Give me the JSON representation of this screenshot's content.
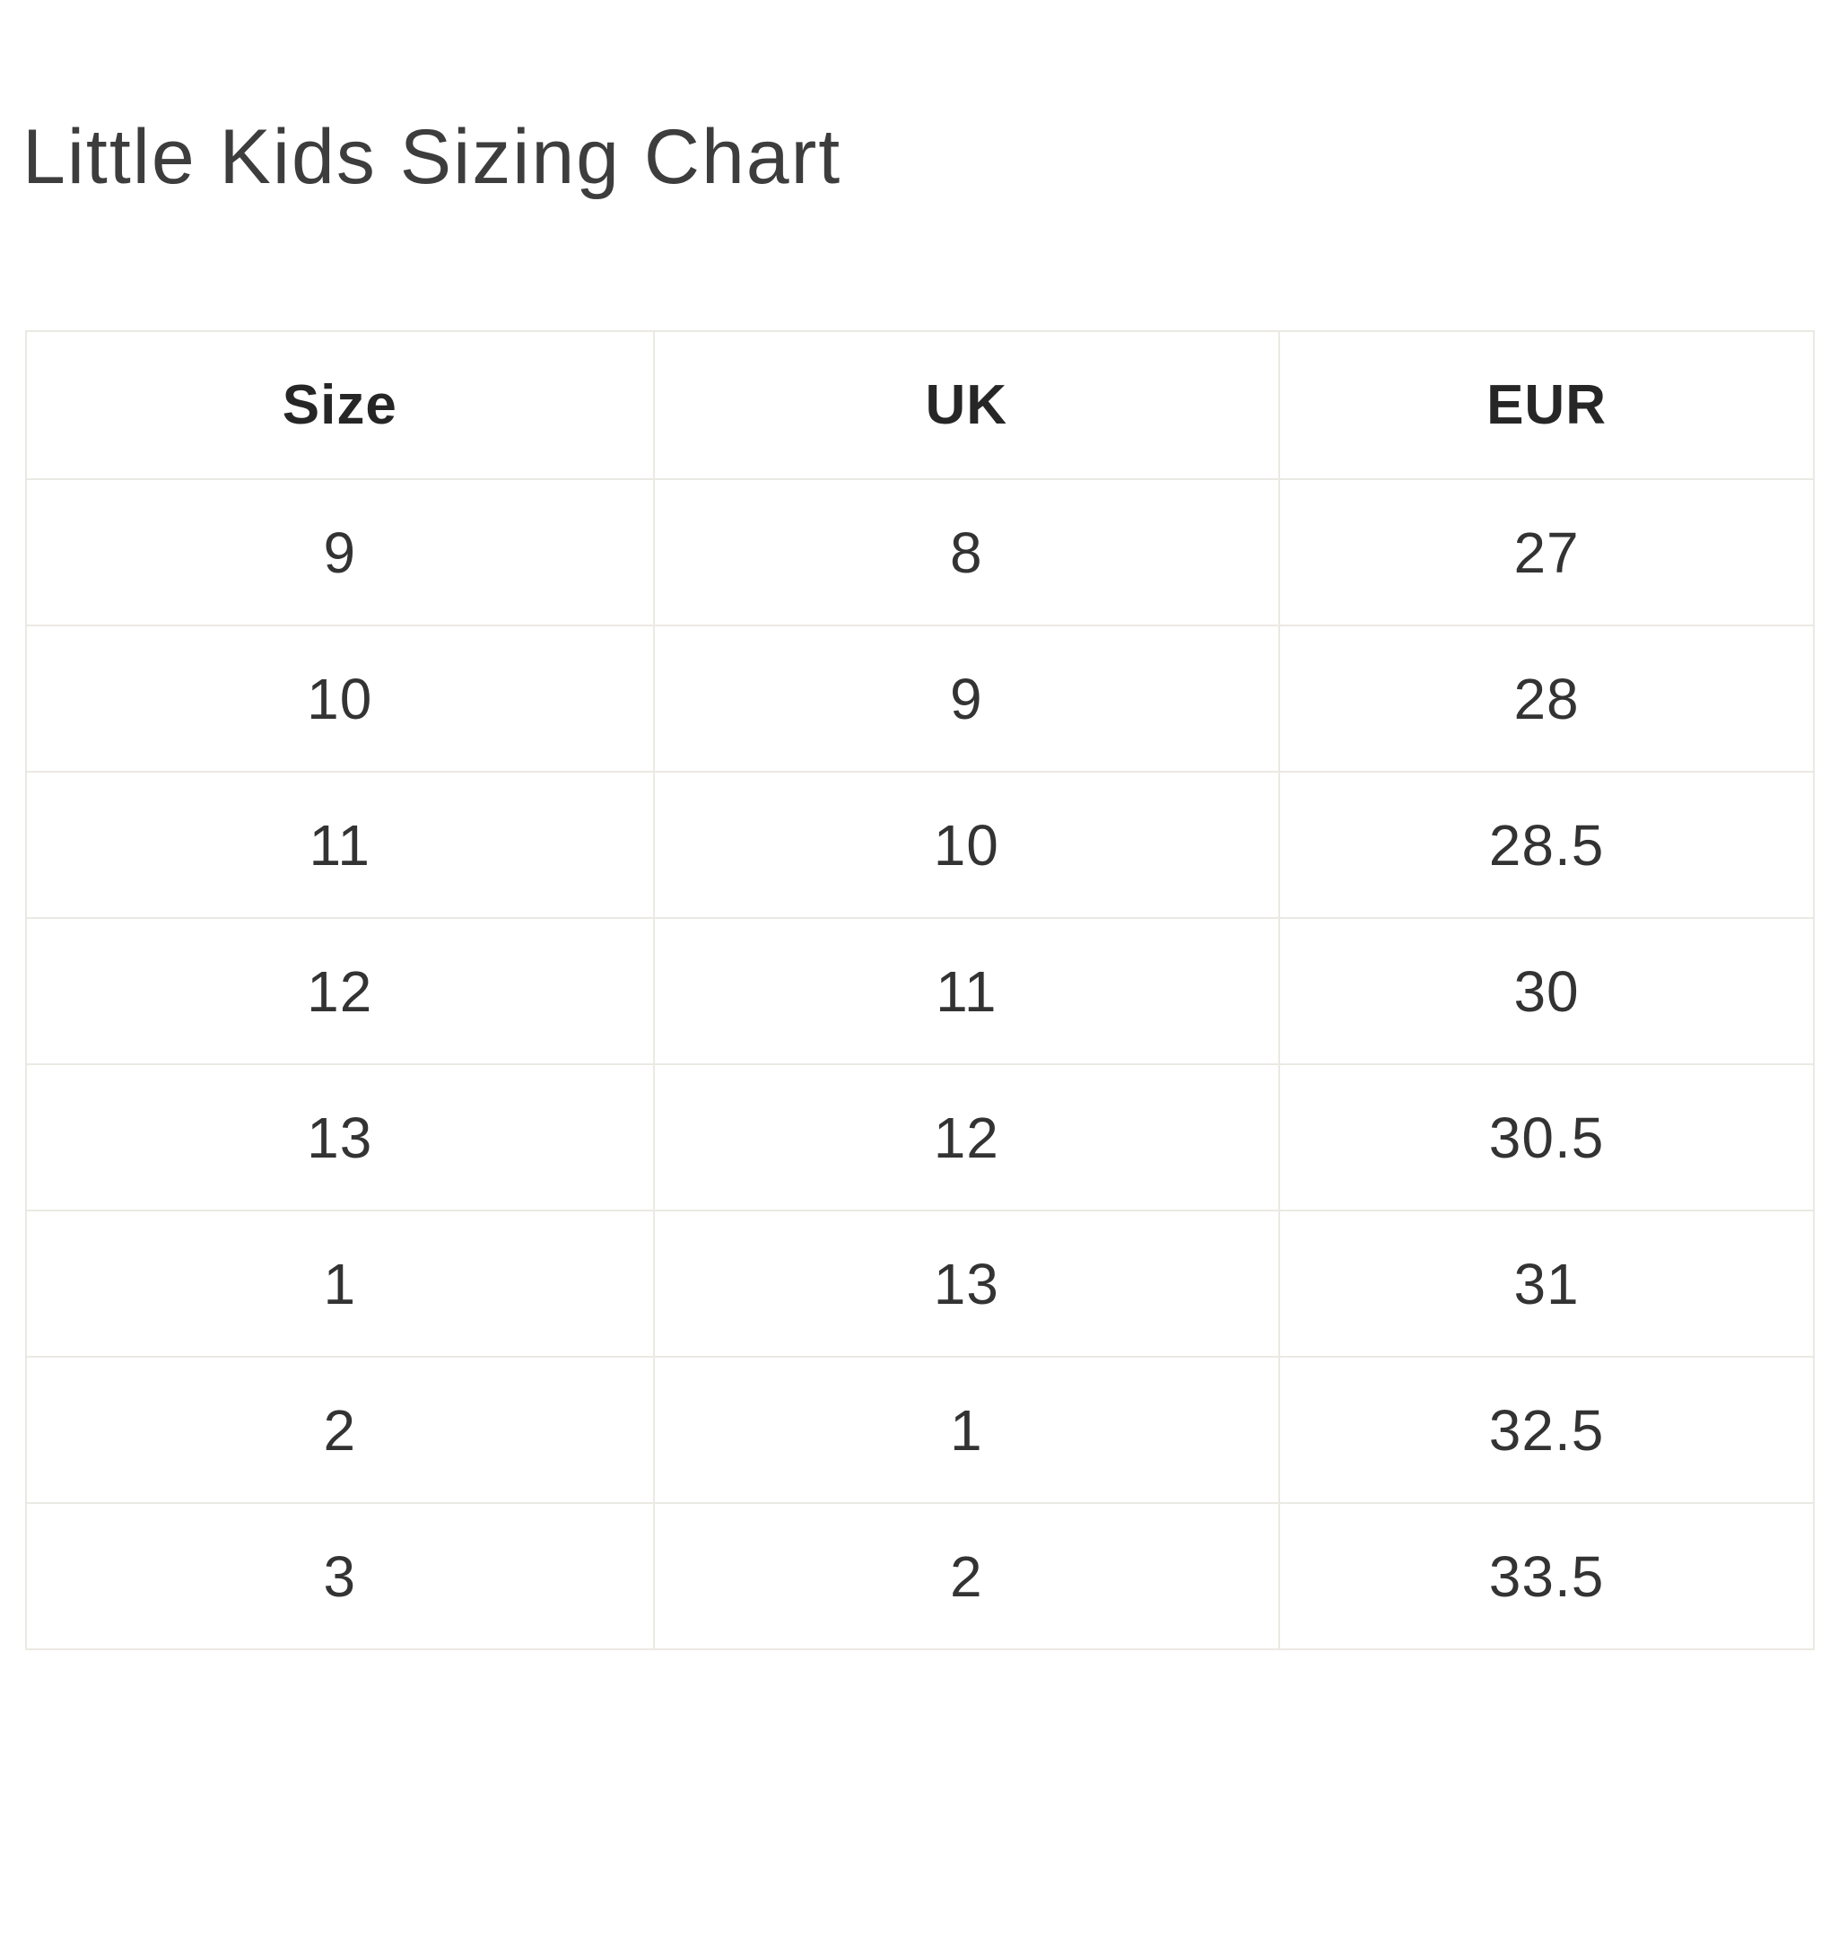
{
  "page": {
    "title": "Little Kids Sizing Chart"
  },
  "chart_data": {
    "type": "table",
    "title": "Little Kids Sizing Chart",
    "columns": [
      "Size",
      "UK",
      "EUR"
    ],
    "rows": [
      [
        "9",
        "8",
        "27"
      ],
      [
        "10",
        "9",
        "28"
      ],
      [
        "11",
        "10",
        "28.5"
      ],
      [
        "12",
        "11",
        "30"
      ],
      [
        "13",
        "12",
        "30.5"
      ],
      [
        "1",
        "13",
        "31"
      ],
      [
        "2",
        "1",
        "32.5"
      ],
      [
        "3",
        "2",
        "33.5"
      ]
    ],
    "layout": {
      "grid": "on",
      "cell_alignment": "center",
      "header_style": "bold"
    }
  },
  "colors": {
    "background": "#ffffff",
    "text": "#333333",
    "heading": "#3d3d3d",
    "header_text": "#262626",
    "grid_border": "#ebe9e3"
  }
}
